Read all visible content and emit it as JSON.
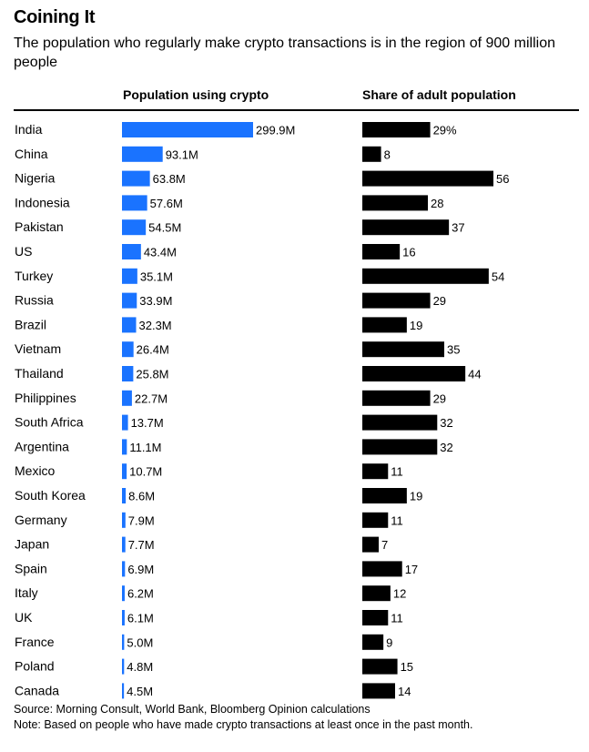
{
  "title": "Coining It",
  "subtitle": "The population who regularly make crypto transactions is in the region of 900 million people",
  "chart_data": {
    "type": "bar",
    "categories": [
      "India",
      "China",
      "Nigeria",
      "Indonesia",
      "Pakistan",
      "US",
      "Turkey",
      "Russia",
      "Brazil",
      "Vietnam",
      "Thailand",
      "Philippines",
      "South Africa",
      "Argentina",
      "Mexico",
      "South Korea",
      "Germany",
      "Japan",
      "Spain",
      "Italy",
      "UK",
      "France",
      "Poland",
      "Canada"
    ],
    "series": [
      {
        "name": "Population using crypto",
        "color": "#1a73ff",
        "values": [
          299.9,
          93.1,
          63.8,
          57.6,
          54.5,
          43.4,
          35.1,
          33.9,
          32.3,
          26.4,
          25.8,
          22.7,
          13.7,
          11.1,
          10.7,
          8.6,
          7.9,
          7.7,
          6.9,
          6.2,
          6.1,
          5.0,
          4.8,
          4.5
        ],
        "labels": [
          "299.9M",
          "93.1M",
          "63.8M",
          "57.6M",
          "54.5M",
          "43.4M",
          "35.1M",
          "33.9M",
          "32.3M",
          "26.4M",
          "25.8M",
          "22.7M",
          "13.7M",
          "11.1M",
          "10.7M",
          "8.6M",
          "7.9M",
          "7.7M",
          "6.9M",
          "6.2M",
          "6.1M",
          "5.0M",
          "4.8M",
          "4.5M"
        ],
        "max": 299.9
      },
      {
        "name": "Share of adult population",
        "color": "#000000",
        "values": [
          29,
          8,
          56,
          28,
          37,
          16,
          54,
          29,
          19,
          35,
          44,
          29,
          32,
          32,
          11,
          19,
          11,
          7,
          17,
          12,
          11,
          9,
          15,
          14
        ],
        "labels": [
          "29%",
          "8",
          "56",
          "28",
          "37",
          "16",
          "54",
          "29",
          "19",
          "35",
          "44",
          "29",
          "32",
          "32",
          "11",
          "19",
          "11",
          "7",
          "17",
          "12",
          "11",
          "9",
          "15",
          "14"
        ],
        "max": 56
      }
    ]
  },
  "source": "Source: Morning Consult, World Bank, Bloomberg Opinion calculations",
  "note": "Note: Based on people who have made crypto transactions at least once in the past month."
}
